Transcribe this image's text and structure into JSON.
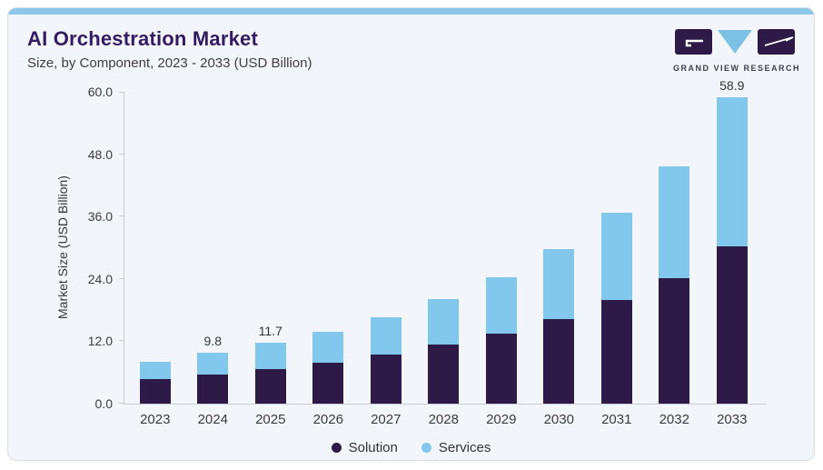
{
  "header": {
    "title": "AI Orchestration Market",
    "subtitle": "Size, by Component, 2023 - 2033 (USD Billion)",
    "logo_text": "GRAND VIEW RESEARCH"
  },
  "chart_data": {
    "type": "bar",
    "stacked": true,
    "title": "AI Orchestration Market Size, by Component, 2023 - 2033 (USD Billion)",
    "categories": [
      "2023",
      "2024",
      "2025",
      "2026",
      "2027",
      "2028",
      "2029",
      "2030",
      "2031",
      "2032",
      "2033"
    ],
    "series": [
      {
        "name": "Solution",
        "color": "#2d1a46",
        "values": [
          4.8,
          5.6,
          6.7,
          7.9,
          9.4,
          11.3,
          13.5,
          16.3,
          19.9,
          24.1,
          30.2
        ]
      },
      {
        "name": "Services",
        "color": "#82c7ec",
        "values": [
          3.2,
          4.2,
          5.0,
          5.9,
          7.2,
          8.8,
          10.8,
          13.5,
          16.9,
          21.5,
          28.7
        ]
      }
    ],
    "totals": [
      8.0,
      9.8,
      11.7,
      13.8,
      16.6,
      20.1,
      24.3,
      29.8,
      36.8,
      45.6,
      58.9
    ],
    "data_labels": [
      "",
      "9.8",
      "11.7",
      "",
      "",
      "",
      "",
      "",
      "",
      "",
      "58.9"
    ],
    "xlabel": "",
    "ylabel": "Market Size (USD Billion)",
    "ylim": [
      0,
      60
    ],
    "yticks": [
      "60.0",
      "48.0",
      "36.0",
      "24.0",
      "12.0",
      "0.0"
    ],
    "grid": false,
    "legend_position": "bottom"
  },
  "colors": {
    "accent_strip": "#8ec6ea",
    "card_background": "#f2f6fa",
    "title_purple": "#331b63",
    "solution_dark_purple": "#2d1a46",
    "services_light_blue": "#82c7ec",
    "axis_gray": "#c6ccd4"
  }
}
